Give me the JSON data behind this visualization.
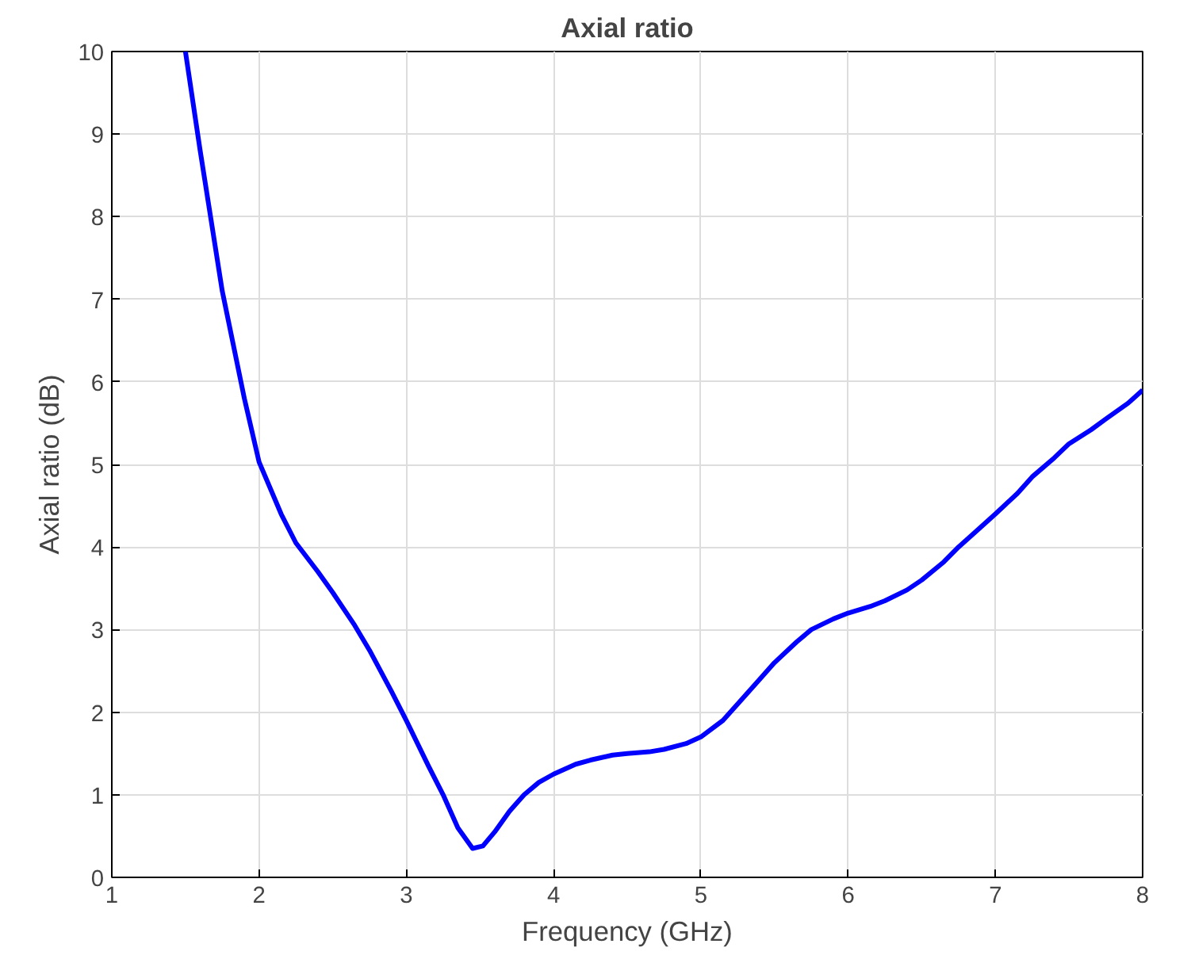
{
  "chart_data": {
    "type": "line",
    "title": "Axial ratio",
    "xlabel": "Frequency (GHz)",
    "ylabel": "Axial ratio (dB)",
    "x": [
      1.5,
      1.6,
      1.75,
      1.9,
      2,
      2.15,
      2.25,
      2.4,
      2.5,
      2.65,
      2.75,
      2.9,
      3,
      3.15,
      3.25,
      3.35,
      3.45,
      3.52,
      3.6,
      3.7,
      3.8,
      3.9,
      4,
      4.15,
      4.25,
      4.4,
      4.5,
      4.65,
      4.75,
      4.9,
      5,
      5.15,
      5.25,
      5.4,
      5.5,
      5.65,
      5.75,
      5.9,
      6,
      6.15,
      6.25,
      6.4,
      6.5,
      6.65,
      6.75,
      6.9,
      7,
      7.15,
      7.25,
      7.4,
      7.5,
      7.65,
      7.75,
      7.9,
      8
    ],
    "series": [
      {
        "color": "#0000ff",
        "values": [
          10,
          8.8,
          7.1,
          5.8,
          5.03,
          4.4,
          4.05,
          3.7,
          3.45,
          3.05,
          2.75,
          2.25,
          1.9,
          1.35,
          1.0,
          0.6,
          0.35,
          0.38,
          0.55,
          0.8,
          1.0,
          1.15,
          1.25,
          1.37,
          1.42,
          1.48,
          1.5,
          1.52,
          1.55,
          1.62,
          1.7,
          1.9,
          2.1,
          2.4,
          2.6,
          2.85,
          3.0,
          3.13,
          3.2,
          3.28,
          3.35,
          3.48,
          3.6,
          3.82,
          4.0,
          4.24,
          4.4,
          4.65,
          4.85,
          5.08,
          5.25,
          5.42,
          5.55,
          5.74,
          5.9
        ]
      }
    ],
    "xlim": [
      1,
      8
    ],
    "xticks": [
      1,
      2,
      3,
      4,
      5,
      6,
      7,
      8
    ],
    "ylim": [
      0,
      10
    ],
    "yticks": [
      0,
      1,
      2,
      3,
      4,
      5,
      6,
      7,
      8,
      9,
      10
    ],
    "grid": true,
    "line_style": "solid",
    "marker": "none"
  }
}
